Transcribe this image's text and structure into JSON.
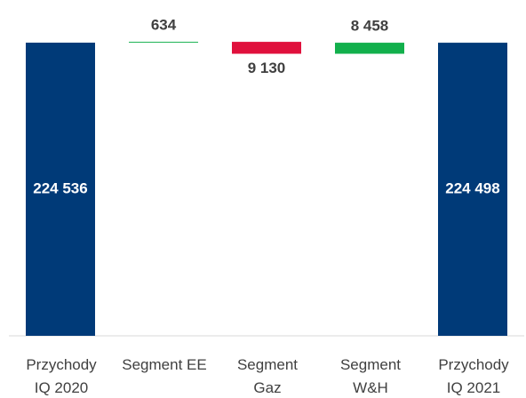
{
  "chart_data": {
    "type": "waterfall",
    "categories": [
      "Przychody\nIQ 2020",
      "Segment EE",
      "Segment\nGaz",
      "Segment\nW&H",
      "Przychody\nIQ 2021"
    ],
    "values": [
      224536,
      634,
      -9130,
      8458,
      224498
    ],
    "value_labels": [
      "224 536",
      "634",
      "9 130",
      "8 458",
      "224 498"
    ],
    "measures": [
      "total",
      "relative",
      "relative",
      "relative",
      "total"
    ],
    "colors": {
      "total": "#003a78",
      "increase": "#12b04c",
      "decrease": "#e0103c"
    },
    "ylim": [
      0,
      240000
    ]
  }
}
